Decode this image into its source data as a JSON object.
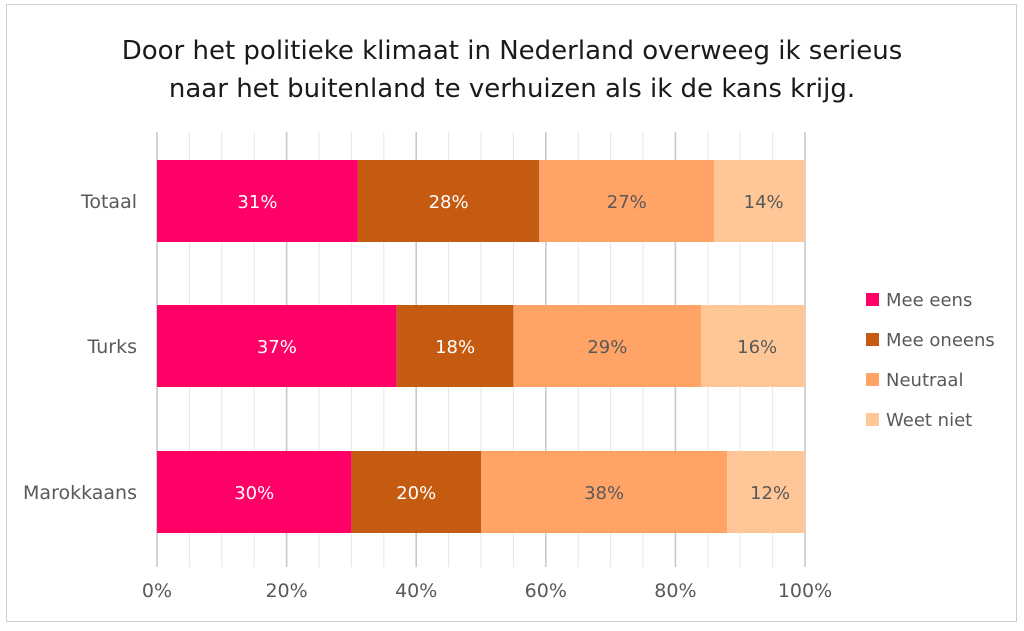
{
  "chart_data": {
    "type": "bar",
    "orientation": "horizontal",
    "stacked": "percent",
    "title": [
      "Door het politieke klimaat in Nederland overweeg ik serieus",
      "naar het buitenland te verhuizen als ik de kans krijg."
    ],
    "categories": [
      "Totaal",
      "Turks",
      "Marokkaans"
    ],
    "series": [
      {
        "name": "Mee eens",
        "values": [
          31,
          37,
          30
        ],
        "color": "#ff0066",
        "label_color": "#ffffff"
      },
      {
        "name": "Mee oneens",
        "values": [
          28,
          18,
          20
        ],
        "color": "#c55a11",
        "label_color": "#ffffff"
      },
      {
        "name": "Neutraal",
        "values": [
          27,
          29,
          38
        ],
        "color": "#ffa466",
        "label_color": "#595959"
      },
      {
        "name": "Weet niet",
        "values": [
          14,
          16,
          12
        ],
        "color": "#ffc797",
        "label_color": "#595959"
      }
    ],
    "data_labels": [
      [
        "31%",
        "37%",
        "30%"
      ],
      [
        "28%",
        "18%",
        "20%"
      ],
      [
        "27%",
        "29%",
        "38%"
      ],
      [
        "14%",
        "16%",
        "12%"
      ]
    ],
    "xlim": [
      0,
      100
    ],
    "x_ticks": [
      "0%",
      "20%",
      "40%",
      "60%",
      "80%",
      "100%"
    ],
    "x_tick_values": [
      0,
      20,
      40,
      60,
      80,
      100
    ],
    "grid": true,
    "legend_position": "right"
  }
}
